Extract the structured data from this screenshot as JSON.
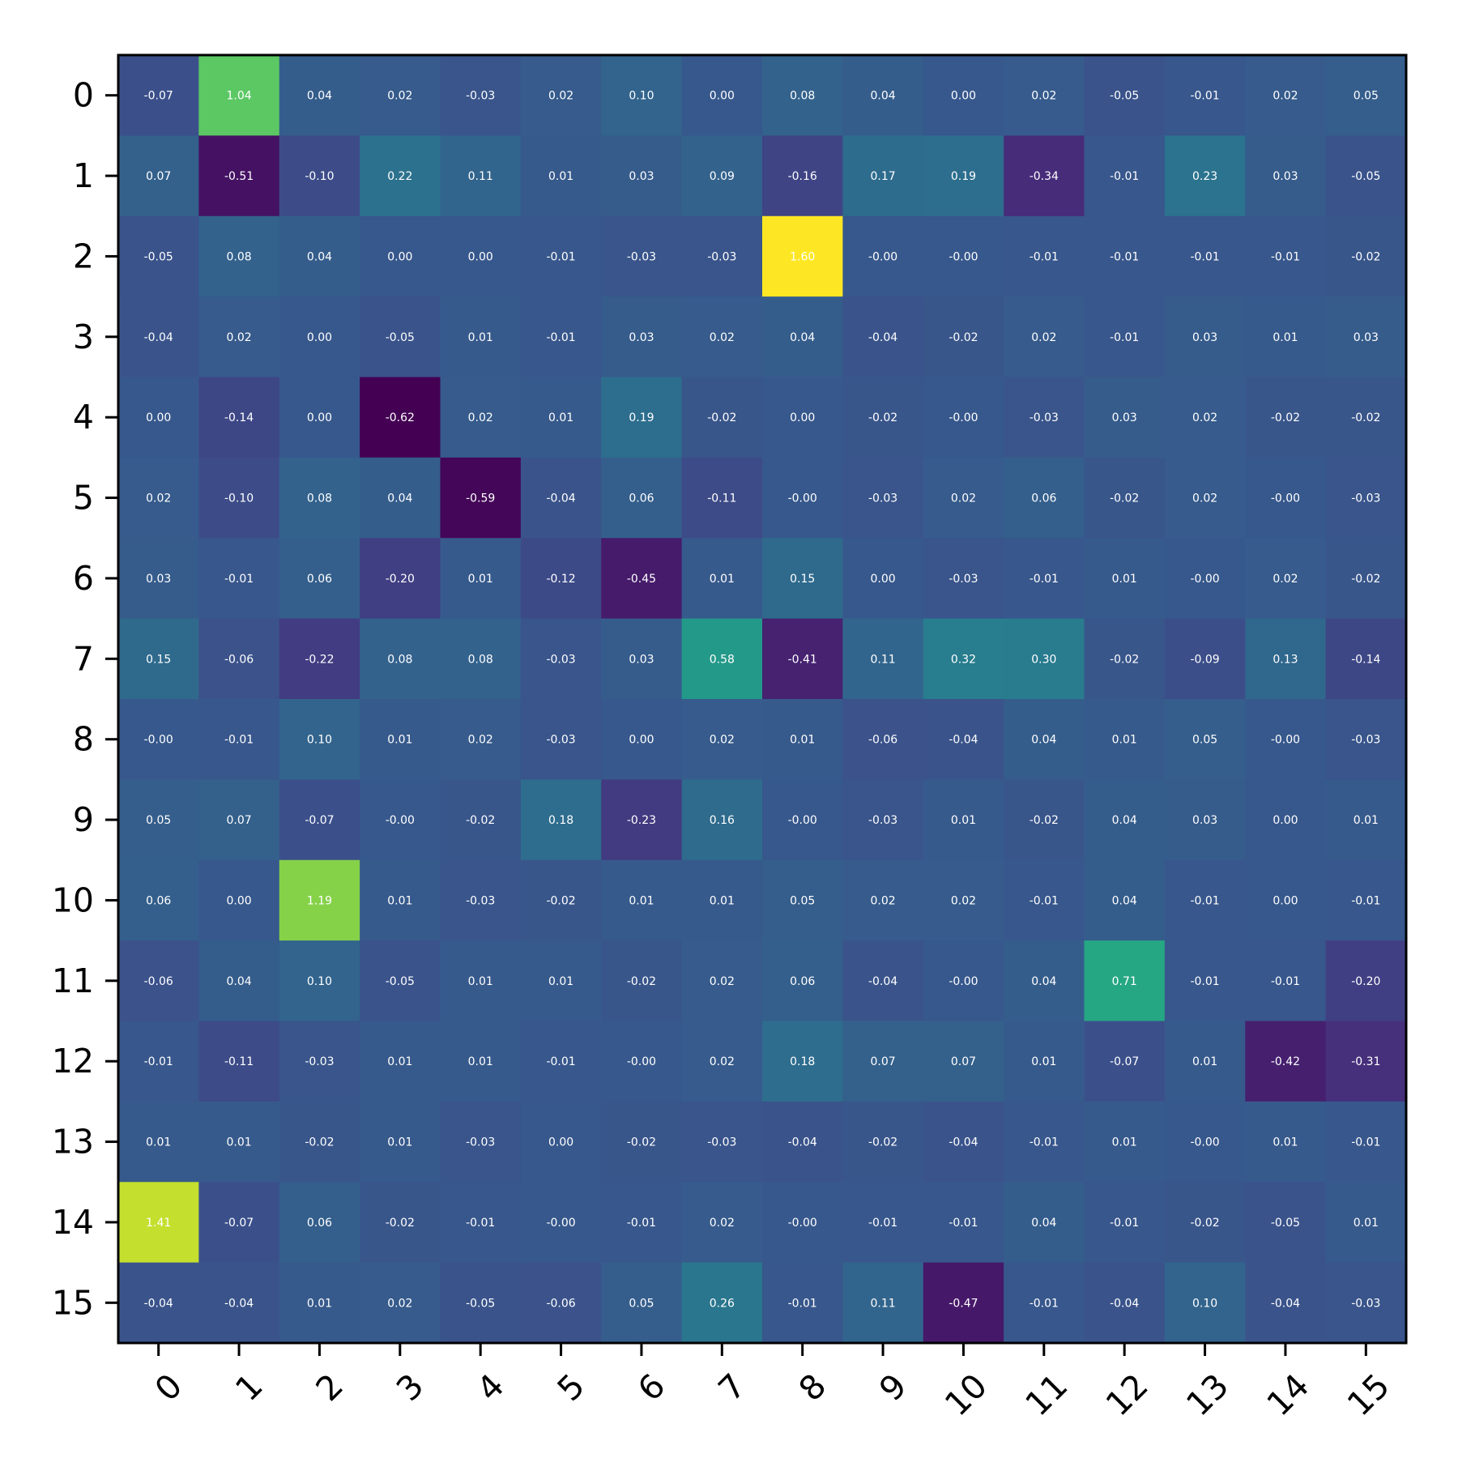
{
  "chart_data": {
    "type": "heatmap",
    "title": "",
    "xlabel": "",
    "ylabel": "",
    "x_tick_labels": [
      "0",
      "1",
      "2",
      "3",
      "4",
      "5",
      "6",
      "7",
      "8",
      "9",
      "10",
      "11",
      "12",
      "13",
      "14",
      "15"
    ],
    "y_tick_labels": [
      "0",
      "1",
      "2",
      "3",
      "4",
      "5",
      "6",
      "7",
      "8",
      "9",
      "10",
      "11",
      "12",
      "13",
      "14",
      "15"
    ],
    "colormap": "viridis",
    "color_range": [
      -0.62,
      1.6
    ],
    "grid": false,
    "legend": "none",
    "cell_labels": [
      [
        "-0.07",
        "1.04",
        "0.04",
        "0.02",
        "-0.03",
        "0.02",
        "0.10",
        "0.00",
        "0.08",
        "0.04",
        "0.00",
        "0.02",
        "-0.05",
        "-0.01",
        "0.02",
        "0.05"
      ],
      [
        "0.07",
        "-0.51",
        "-0.10",
        "0.22",
        "0.11",
        "0.01",
        "0.03",
        "0.09",
        "-0.16",
        "0.17",
        "0.19",
        "-0.34",
        "-0.01",
        "0.23",
        "0.03",
        "-0.05"
      ],
      [
        "-0.05",
        "0.08",
        "0.04",
        "0.00",
        "0.00",
        "-0.01",
        "-0.03",
        "-0.03",
        "1.60",
        "-0.00",
        "-0.00",
        "-0.01",
        "-0.01",
        "-0.01",
        "-0.01",
        "-0.02"
      ],
      [
        "-0.04",
        "0.02",
        "0.00",
        "-0.05",
        "0.01",
        "-0.01",
        "0.03",
        "0.02",
        "0.04",
        "-0.04",
        "-0.02",
        "0.02",
        "-0.01",
        "0.03",
        "0.01",
        "0.03"
      ],
      [
        "0.00",
        "-0.14",
        "0.00",
        "-0.62",
        "0.02",
        "0.01",
        "0.19",
        "-0.02",
        "0.00",
        "-0.02",
        "-0.00",
        "-0.03",
        "0.03",
        "0.02",
        "-0.02",
        "-0.02"
      ],
      [
        "0.02",
        "-0.10",
        "0.08",
        "0.04",
        "-0.59",
        "-0.04",
        "0.06",
        "-0.11",
        "-0.00",
        "-0.03",
        "0.02",
        "0.06",
        "-0.02",
        "0.02",
        "-0.00",
        "-0.03"
      ],
      [
        "0.03",
        "-0.01",
        "0.06",
        "-0.20",
        "0.01",
        "-0.12",
        "-0.45",
        "0.01",
        "0.15",
        "0.00",
        "-0.03",
        "-0.01",
        "0.01",
        "-0.00",
        "0.02",
        "-0.02"
      ],
      [
        "0.15",
        "-0.06",
        "-0.22",
        "0.08",
        "0.08",
        "-0.03",
        "0.03",
        "0.58",
        "-0.41",
        "0.11",
        "0.32",
        "0.30",
        "-0.02",
        "-0.09",
        "0.13",
        "-0.14"
      ],
      [
        "-0.00",
        "-0.01",
        "0.10",
        "0.01",
        "0.02",
        "-0.03",
        "0.00",
        "0.02",
        "0.01",
        "-0.06",
        "-0.04",
        "0.04",
        "0.01",
        "0.05",
        "-0.00",
        "-0.03"
      ],
      [
        "0.05",
        "0.07",
        "-0.07",
        "-0.00",
        "-0.02",
        "0.18",
        "-0.23",
        "0.16",
        "-0.00",
        "-0.03",
        "0.01",
        "-0.02",
        "0.04",
        "0.03",
        "0.00",
        "0.01"
      ],
      [
        "0.06",
        "0.00",
        "1.19",
        "0.01",
        "-0.03",
        "-0.02",
        "0.01",
        "0.01",
        "0.05",
        "0.02",
        "0.02",
        "-0.01",
        "0.04",
        "-0.01",
        "0.00",
        "-0.01"
      ],
      [
        "-0.06",
        "0.04",
        "0.10",
        "-0.05",
        "0.01",
        "0.01",
        "-0.02",
        "0.02",
        "0.06",
        "-0.04",
        "-0.00",
        "0.04",
        "0.71",
        "-0.01",
        "-0.01",
        "-0.20"
      ],
      [
        "-0.01",
        "-0.11",
        "-0.03",
        "0.01",
        "0.01",
        "-0.01",
        "-0.00",
        "0.02",
        "0.18",
        "0.07",
        "0.07",
        "0.01",
        "-0.07",
        "0.01",
        "-0.42",
        "-0.31"
      ],
      [
        "0.01",
        "0.01",
        "-0.02",
        "0.01",
        "-0.03",
        "0.00",
        "-0.02",
        "-0.03",
        "-0.04",
        "-0.02",
        "-0.04",
        "-0.01",
        "0.01",
        "-0.00",
        "0.01",
        "-0.01"
      ],
      [
        "1.41",
        "-0.07",
        "0.06",
        "-0.02",
        "-0.01",
        "-0.00",
        "-0.01",
        "0.02",
        "-0.00",
        "-0.01",
        "-0.01",
        "0.04",
        "-0.01",
        "-0.02",
        "-0.05",
        "0.01"
      ],
      [
        "-0.04",
        "-0.04",
        "0.01",
        "0.02",
        "-0.05",
        "-0.06",
        "0.05",
        "0.26",
        "-0.01",
        "0.11",
        "-0.47",
        "-0.01",
        "-0.04",
        "0.10",
        "-0.04",
        "-0.03"
      ]
    ]
  }
}
